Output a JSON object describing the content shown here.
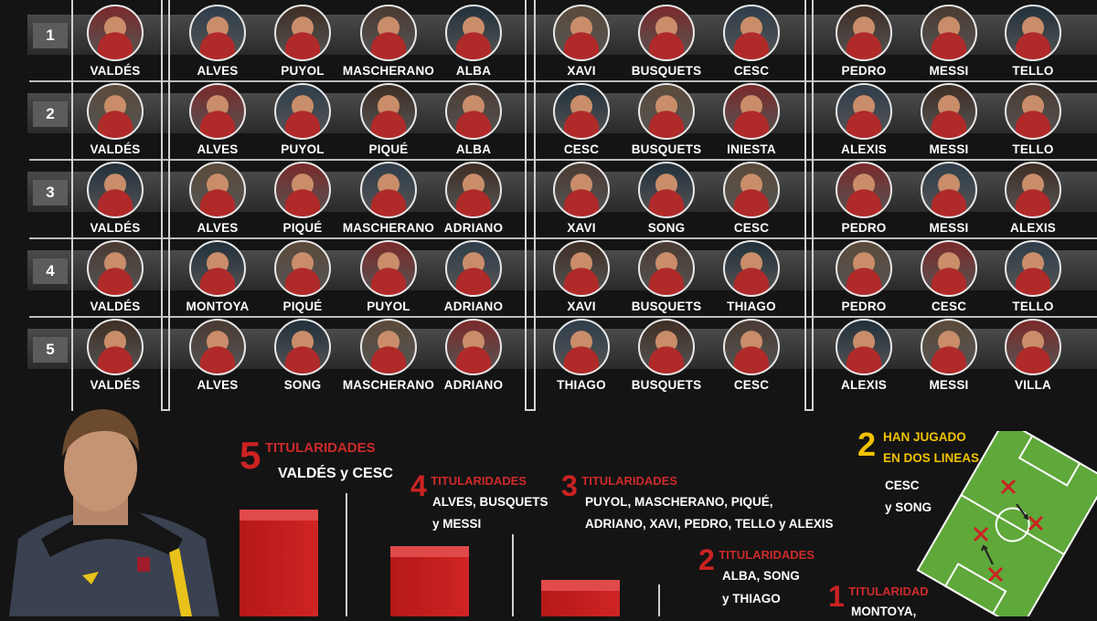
{
  "rows": [
    {
      "number": "1",
      "goalkeeper": "VALDÉS",
      "defenders": [
        "ALVES",
        "PUYOL",
        "MASCHERANO",
        "ALBA"
      ],
      "midfielders": [
        "XAVI",
        "BUSQUETS",
        "CESC"
      ],
      "forwards": [
        "PEDRO",
        "MESSI",
        "TELLO"
      ]
    },
    {
      "number": "2",
      "goalkeeper": "VALDÉS",
      "defenders": [
        "ALVES",
        "PUYOL",
        "PIQUÉ",
        "ALBA"
      ],
      "midfielders": [
        "CESC",
        "BUSQUETS",
        "INIESTA"
      ],
      "forwards": [
        "ALEXIS",
        "MESSI",
        "TELLO"
      ]
    },
    {
      "number": "3",
      "goalkeeper": "VALDÉS",
      "defenders": [
        "ALVES",
        "PIQUÉ",
        "MASCHERANO",
        "ADRIANO"
      ],
      "midfielders": [
        "XAVI",
        "SONG",
        "CESC"
      ],
      "forwards": [
        "PEDRO",
        "MESSI",
        "ALEXIS"
      ]
    },
    {
      "number": "4",
      "goalkeeper": "VALDÉS",
      "defenders": [
        "MONTOYA",
        "PIQUÉ",
        "PUYOL",
        "ADRIANO"
      ],
      "midfielders": [
        "XAVI",
        "BUSQUETS",
        "THIAGO"
      ],
      "forwards": [
        "PEDRO",
        "CESC",
        "TELLO"
      ]
    },
    {
      "number": "5",
      "goalkeeper": "VALDÉS",
      "defenders": [
        "ALVES",
        "SONG",
        "MASCHERANO",
        "ADRIANO"
      ],
      "midfielders": [
        "THIAGO",
        "BUSQUETS",
        "CESC"
      ],
      "forwards": [
        "ALEXIS",
        "MESSI",
        "VILLA"
      ]
    }
  ],
  "stats": [
    {
      "count": "5",
      "label": "TITULARIDADES",
      "names": [
        "VALDÉS y CESC"
      ]
    },
    {
      "count": "4",
      "label": "TITULARIDADES",
      "names": [
        "ALVES, BUSQUETS",
        "y MESSI"
      ]
    },
    {
      "count": "3",
      "label": "TITULARIDADES",
      "names": [
        "PUYOL, MASCHERANO, PIQUÉ,",
        "ADRIANO, XAVI, PEDRO, TELLO y ALEXIS"
      ]
    },
    {
      "count": "2",
      "label": "TITULARIDADES",
      "names": [
        "ALBA, SONG",
        "y THIAGO"
      ]
    },
    {
      "count": "1",
      "label": "TITULARIDAD",
      "names": [
        "MONTOYA,"
      ]
    }
  ],
  "two_lines": {
    "count": "2",
    "line1": "HAN JUGADO",
    "line2": "EN DOS LINEAS",
    "names": [
      "CESC",
      "y SONG"
    ]
  },
  "colors": {
    "accent_red": "#cc2222",
    "accent_yellow": "#f2c200",
    "pitch_green": "#5fa83a"
  }
}
